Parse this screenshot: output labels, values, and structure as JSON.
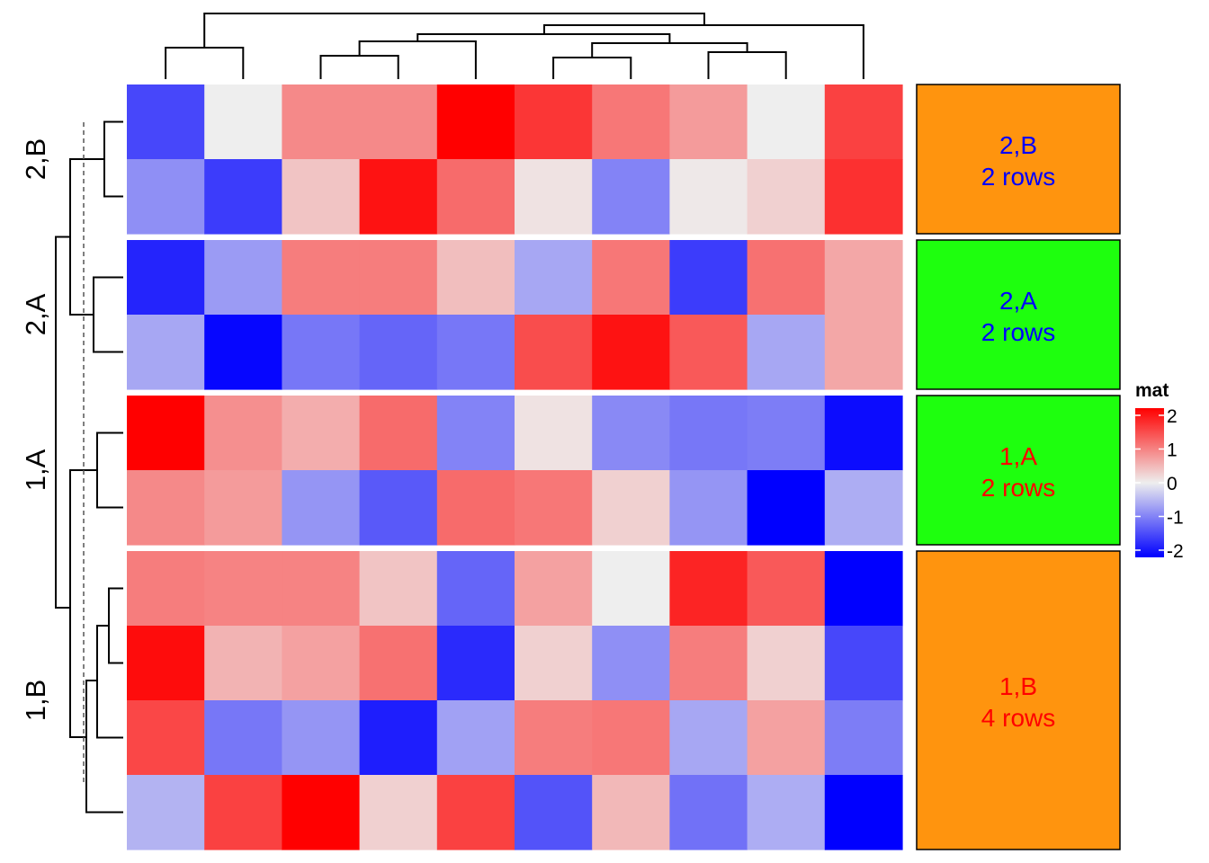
{
  "chart_data": {
    "type": "heatmap",
    "n_columns": 10,
    "row_groups": [
      {
        "label": "2,B",
        "panel_lines": [
          "2,B",
          "2 rows"
        ],
        "panel_fill": "#FF940E",
        "text_color": "#0000FF",
        "rows": [
          [
            -1.4,
            0.0,
            0.85,
            0.85,
            2.05,
            1.55,
            1.0,
            0.7,
            0.0,
            1.45
          ],
          [
            -0.8,
            -1.5,
            0.35,
            1.85,
            1.1,
            0.1,
            -0.9,
            0.05,
            0.25,
            1.6
          ]
        ]
      },
      {
        "label": "2,A",
        "panel_lines": [
          "2,A",
          "2 rows"
        ],
        "panel_fill": "#1EFF0E",
        "text_color": "#0000FF",
        "rows": [
          [
            -1.7,
            -0.7,
            0.95,
            0.95,
            0.4,
            -0.6,
            1.0,
            -1.5,
            1.05,
            0.6
          ],
          [
            -0.6,
            -1.95,
            -1.0,
            -1.15,
            -1.0,
            1.35,
            1.85,
            1.25,
            -0.6,
            0.6
          ]
        ]
      },
      {
        "label": "1,A",
        "panel_lines": [
          "1,A",
          "2 rows"
        ],
        "panel_fill": "#1EFF0E",
        "text_color": "#FF0000",
        "rows": [
          [
            2.2,
            0.8,
            0.55,
            1.1,
            -0.9,
            0.1,
            -0.85,
            -1.0,
            -0.95,
            -1.9
          ],
          [
            0.85,
            0.7,
            -0.75,
            -1.25,
            1.1,
            1.0,
            0.25,
            -0.75,
            -2.05,
            -0.55
          ]
        ]
      },
      {
        "label": "1,B",
        "panel_lines": [
          "1,B",
          "4 rows"
        ],
        "panel_fill": "#FF940E",
        "text_color": "#FF0000",
        "rows": [
          [
            0.95,
            0.9,
            0.9,
            0.35,
            -1.15,
            0.65,
            0.0,
            1.7,
            1.25,
            -2.1
          ],
          [
            1.9,
            0.5,
            0.65,
            1.05,
            -1.65,
            0.25,
            -0.8,
            0.95,
            0.25,
            -1.4
          ],
          [
            1.4,
            -1.0,
            -0.75,
            -1.75,
            -0.65,
            0.95,
            1.0,
            -0.6,
            0.65,
            -0.95
          ],
          [
            -0.5,
            1.45,
            2.15,
            0.25,
            1.45,
            -1.3,
            0.45,
            -1.05,
            -0.55,
            -2.4
          ]
        ]
      }
    ],
    "legend": {
      "title": "mat",
      "ticks": [
        "2",
        "1",
        "0",
        "-1",
        "-2"
      ],
      "color_low": "#0000FF",
      "color_mid": "#EEEEEE",
      "color_high": "#FF0000",
      "range": [
        -2,
        2
      ]
    },
    "column_dendrogram": true,
    "row_dendrogram": true
  }
}
